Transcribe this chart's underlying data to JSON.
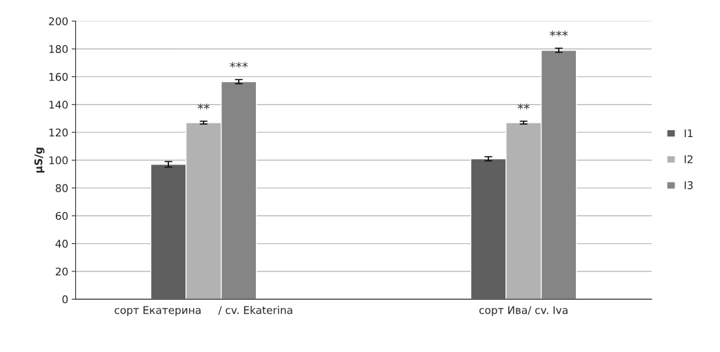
{
  "chart_data": {
    "type": "bar",
    "ylabel": "µS/g",
    "categories": [
      "сорт Екатерина     / cv. Ekaterina",
      "сорт Ива/ cv. Iva"
    ],
    "series": [
      {
        "name": "I1",
        "color": "#5f5f5f",
        "values": [
          97,
          101
        ],
        "errors": [
          2,
          1.5
        ]
      },
      {
        "name": "I2",
        "color": "#b2b2b2",
        "values": [
          127,
          127
        ],
        "errors": [
          1,
          1
        ]
      },
      {
        "name": "I3",
        "color": "#858585",
        "values": [
          156.5,
          179
        ],
        "errors": [
          1.5,
          1.5
        ]
      }
    ],
    "annotations": [
      "**",
      "***",
      "**",
      "***"
    ],
    "ylim": [
      0,
      200
    ],
    "yticks": [
      0,
      20,
      40,
      60,
      80,
      100,
      120,
      140,
      160,
      180,
      200
    ],
    "grid": "y",
    "legend": "right"
  }
}
